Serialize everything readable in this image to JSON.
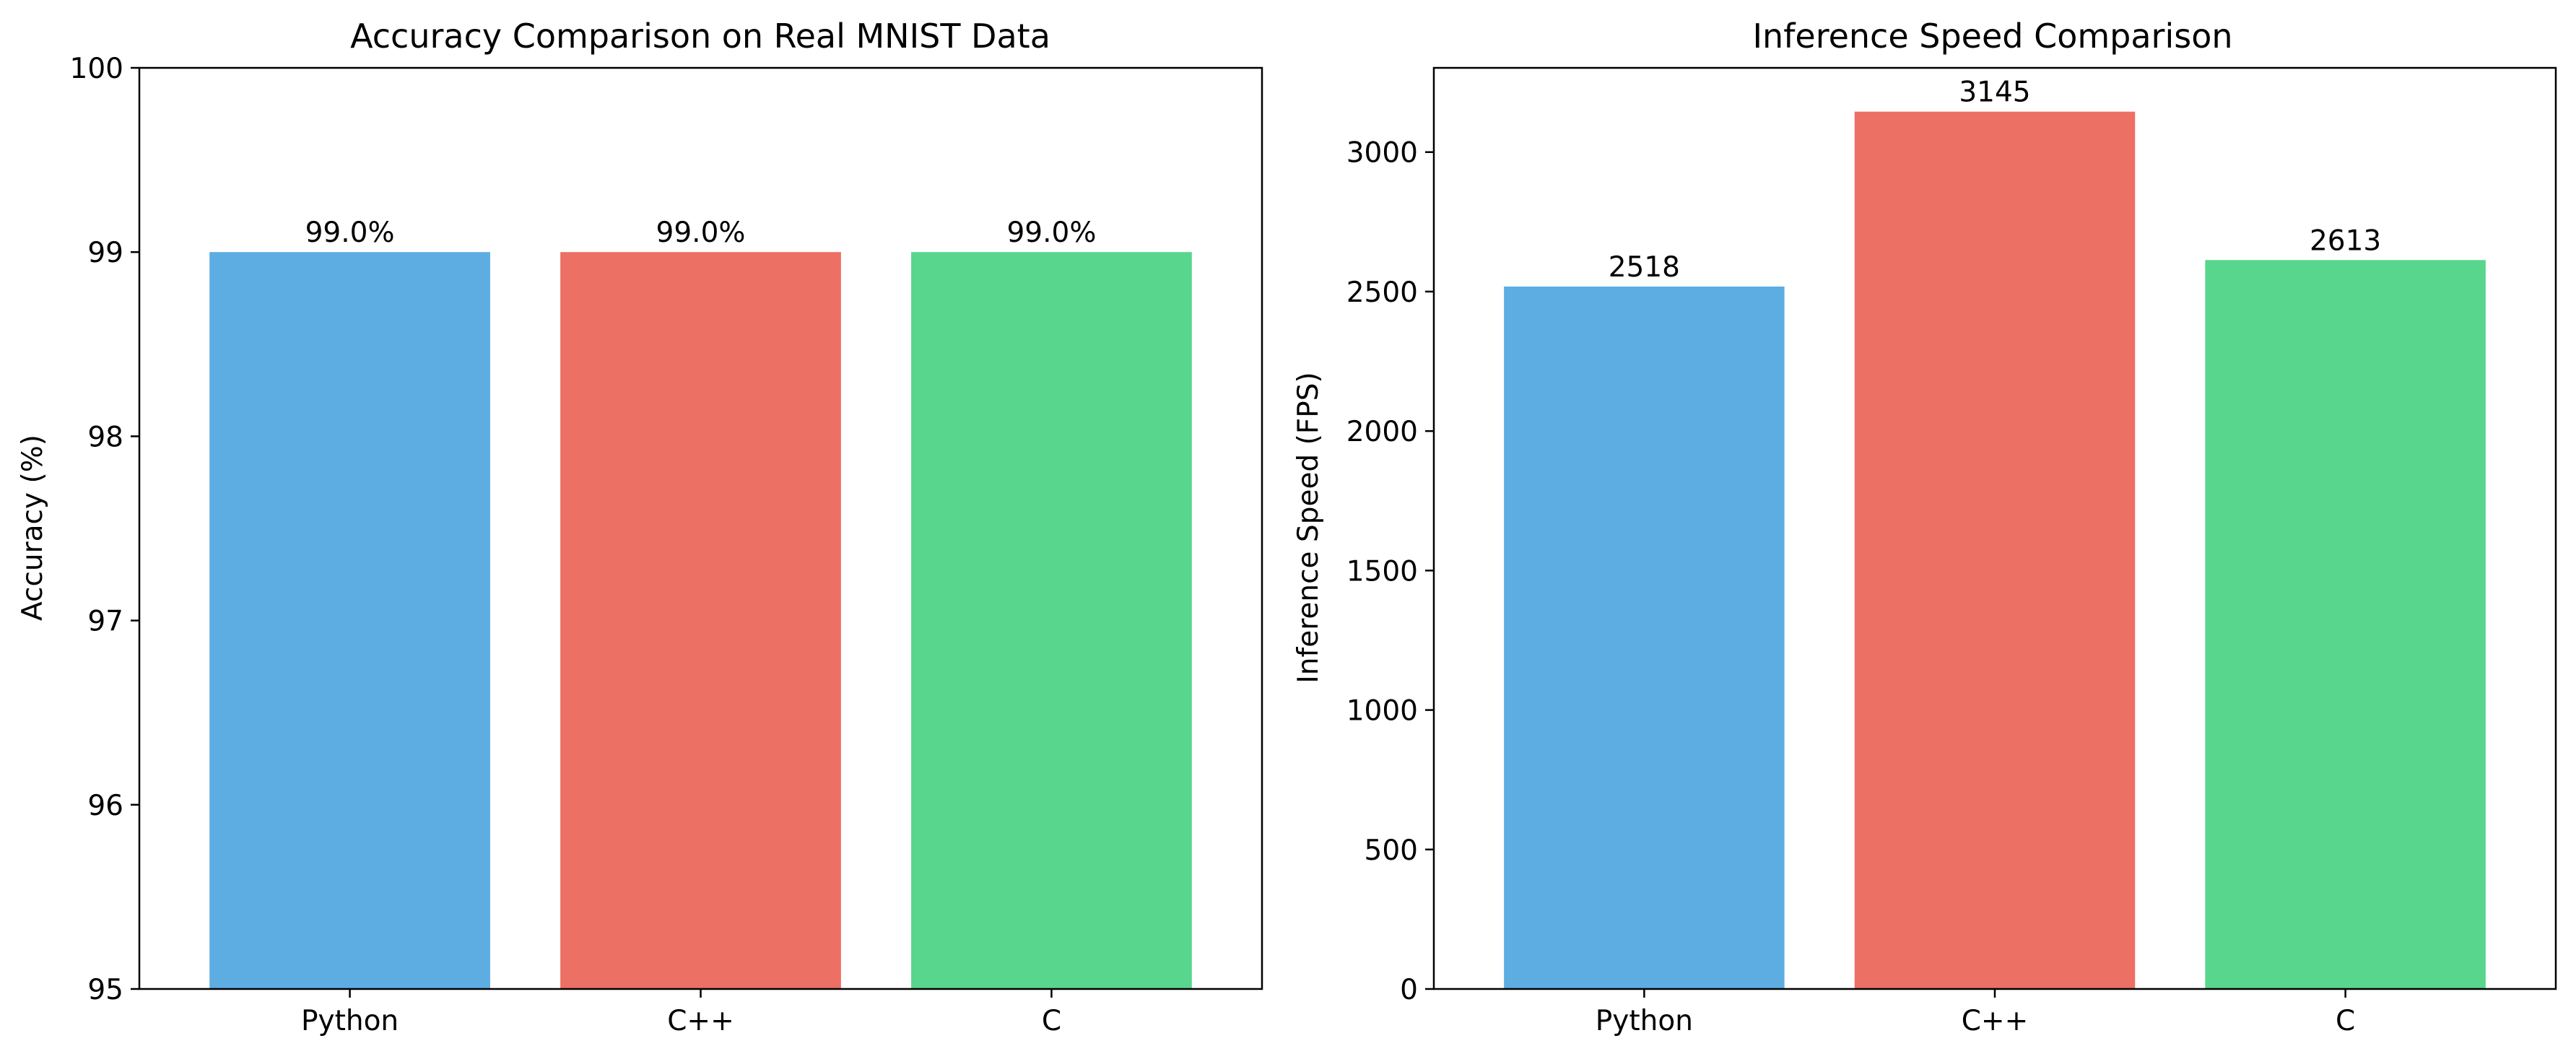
{
  "chart_data": [
    {
      "type": "bar",
      "title": "Accuracy Comparison on Real MNIST Data",
      "xlabel": "",
      "ylabel": "Accuracy (%)",
      "categories": [
        "Python",
        "C++",
        "C"
      ],
      "values": [
        99.0,
        99.0,
        99.0
      ],
      "value_labels": [
        "99.0%",
        "99.0%",
        "99.0%"
      ],
      "colors": [
        "#5dade2",
        "#ec7063",
        "#58d68d"
      ],
      "ylim": [
        95,
        100
      ],
      "yticks": [
        95,
        96,
        97,
        98,
        99,
        100
      ],
      "grid": false,
      "legend": "none"
    },
    {
      "type": "bar",
      "title": "Inference Speed Comparison",
      "xlabel": "",
      "ylabel": "Inference Speed (FPS)",
      "categories": [
        "Python",
        "C++",
        "C"
      ],
      "values": [
        2518,
        3145,
        2613
      ],
      "value_labels": [
        "2518",
        "3145",
        "2613"
      ],
      "colors": [
        "#5dade2",
        "#ec7063",
        "#58d68d"
      ],
      "ylim": [
        0,
        3302
      ],
      "yticks": [
        0,
        500,
        1000,
        1500,
        2000,
        2500,
        3000
      ],
      "grid": false,
      "legend": "none"
    }
  ]
}
